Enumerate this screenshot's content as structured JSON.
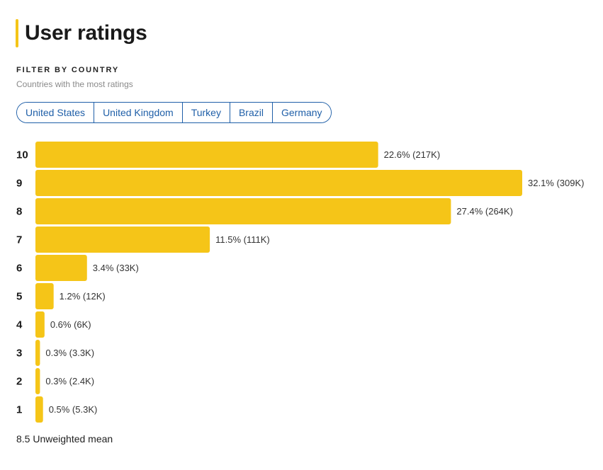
{
  "header": {
    "title": "User ratings",
    "filter_heading": "FILTER BY COUNTRY",
    "filter_subtitle": "Countries with the most ratings"
  },
  "countries": [
    "United States",
    "United Kingdom",
    "Turkey",
    "Brazil",
    "Germany"
  ],
  "colors": {
    "bar": "#f5c518",
    "accent": "#f5c518",
    "chip": "#1f5fa8"
  },
  "chart_data": {
    "type": "bar",
    "orientation": "horizontal",
    "categories": [
      "10",
      "9",
      "8",
      "7",
      "6",
      "5",
      "4",
      "3",
      "2",
      "1"
    ],
    "values": [
      22.6,
      32.1,
      27.4,
      11.5,
      3.4,
      1.2,
      0.6,
      0.3,
      0.3,
      0.5
    ],
    "counts": [
      "217K",
      "309K",
      "264K",
      "111K",
      "33K",
      "12K",
      "6K",
      "3.3K",
      "2.4K",
      "5.3K"
    ],
    "data_labels": [
      "22.6% (217K)",
      "32.1% (309K)",
      "27.4% (264K)",
      "11.5% (111K)",
      "3.4% (33K)",
      "1.2% (12K)",
      "0.6% (6K)",
      "0.3% (3.3K)",
      "0.3% (2.4K)",
      "0.5% (5.3K)"
    ],
    "xlim": [
      0,
      32.1
    ],
    "grid": false,
    "legend": "none"
  },
  "footer": {
    "mean_text": "8.5 Unweighted mean"
  }
}
